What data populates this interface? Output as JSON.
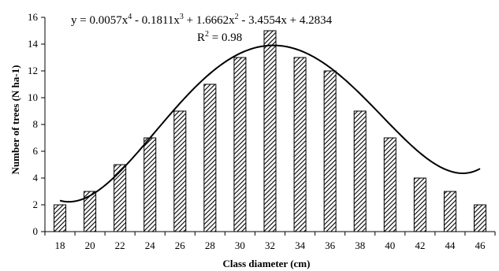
{
  "chart_data": {
    "type": "bar",
    "categories": [
      "18",
      "20",
      "22",
      "24",
      "26",
      "28",
      "30",
      "32",
      "34",
      "36",
      "38",
      "40",
      "42",
      "44",
      "46"
    ],
    "series": [
      {
        "values": [
          2,
          3,
          5,
          7,
          9,
          11,
          13,
          15,
          13,
          12,
          9,
          7,
          4,
          3,
          2
        ]
      }
    ],
    "trendline": {
      "type": "polynomial",
      "order": 4,
      "coefficients": [
        0.0057,
        -0.1811,
        1.6662,
        -3.4554,
        4.2834
      ],
      "x_variable": "category index (1-15)"
    },
    "equation_prefix": "y = 0.0057x",
    "equation_exp": "4",
    "equation_mid1": " - 0.1811x",
    "equation_exp2": "3",
    "equation_mid2": " + 1.6662x",
    "equation_exp3": "2",
    "equation_suffix": " - 3.4554x + 4.2834",
    "r2_prefix": "R",
    "r2_exp": "2",
    "r2_suffix": " = 0.98",
    "xlabel": "Class diameter (cm)",
    "ylabel": "Number of trees (N ha-1)",
    "ylim": [
      0,
      16
    ],
    "yticks": [
      "0",
      "2",
      "4",
      "6",
      "8",
      "10",
      "12",
      "14",
      "16"
    ],
    "grid": false,
    "legend": "none",
    "colors": {
      "bar_stroke": "#000000",
      "hatch": "#000000",
      "bar_fill": "#ffffff",
      "curve": "#000000"
    }
  }
}
